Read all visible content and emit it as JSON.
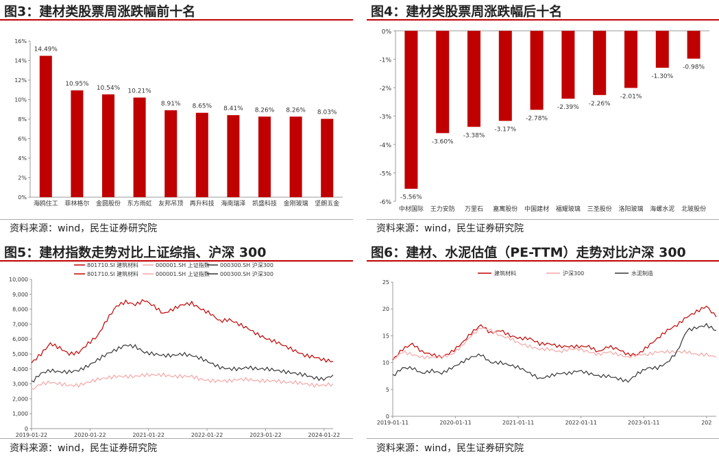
{
  "colors": {
    "accent": "#c00000",
    "pink": "#f4a6a6",
    "dark": "#333333"
  },
  "fig3": {
    "title": "图3：建材类股票周涨跌幅前十名",
    "source": "资料来源：wind，民生证券研究院"
  },
  "fig4": {
    "title": "图4：建材类股票周涨跌幅后十名",
    "source": "资料来源：wind，民生证券研究院"
  },
  "fig5": {
    "title": "图5：建材指数走势对比上证综指、沪深 300",
    "source": "资料来源：wind，民生证券研究院",
    "legend_top": [
      "801710.SI 建筑材料",
      "000001.SH 上证指数",
      "000300.SH 沪深300"
    ],
    "legend_bottom": [
      "801710.SI 建筑材料",
      "000001.SH 上证指数",
      "000300.SH 沪深300"
    ]
  },
  "fig6": {
    "title": "图6：建材、水泥估值（PE-TTM）走势对比沪深 300",
    "source": "资料来源：wind，民生证券研究院",
    "legend": [
      "建筑材料",
      "沪深300",
      "水泥制造"
    ]
  },
  "chart_data": [
    {
      "type": "bar",
      "categories": [
        "海鸥住工",
        "菲林格尔",
        "金圆股份",
        "东方雨虹",
        "友邦吊顶",
        "再升科技",
        "海南瑞泽",
        "凯盛科技",
        "金刚玻璃",
        "坚朗五金"
      ],
      "values": [
        14.49,
        10.95,
        10.54,
        10.21,
        8.91,
        8.65,
        8.41,
        8.26,
        8.26,
        8.03
      ],
      "labels": [
        "14.49%",
        "10.95%",
        "10.54%",
        "10.21%",
        "8.91%",
        "8.65%",
        "8.41%",
        "8.26%",
        "8.26%",
        "8.03%"
      ],
      "ylim": [
        0,
        16
      ],
      "yticks": [
        "0%",
        "2%",
        "4%",
        "6%",
        "8%",
        "10%",
        "12%",
        "14%",
        "16%"
      ]
    },
    {
      "type": "bar",
      "categories": [
        "中材国际",
        "王力安防",
        "万里石",
        "嘉寓股份",
        "中国建材",
        "福耀玻璃",
        "三圣股份",
        "洛阳玻璃",
        "海螺水泥",
        "北玻股份"
      ],
      "values": [
        -5.56,
        -3.6,
        -3.38,
        -3.17,
        -2.78,
        -2.39,
        -2.26,
        -2.01,
        -1.3,
        -0.98
      ],
      "labels": [
        "-5.56%",
        "-3.60%",
        "-3.38%",
        "-3.17%",
        "-2.78%",
        "-2.39%",
        "-2.26%",
        "-2.01%",
        "-1.30%",
        "-0.98%"
      ],
      "ylim": [
        -6,
        0
      ],
      "yticks": [
        "0%",
        "-1%",
        "-2%",
        "-3%",
        "-4%",
        "-5%",
        "-6%"
      ]
    },
    {
      "type": "line",
      "x_ticks": [
        "2019-01-22",
        "2020-01-22",
        "2021-01-22",
        "2022-01-22",
        "2023-01-22",
        "2024-01-22"
      ],
      "yticks": [
        "0",
        "1,000",
        "2,000",
        "3,000",
        "4,000",
        "5,000",
        "6,000",
        "7,000",
        "8,000",
        "9,000",
        "10,000"
      ],
      "ylim": [
        0,
        10000
      ],
      "series": [
        {
          "name": "801710.SI 建筑材料",
          "color": "#c00000",
          "values": [
            4400,
            5000,
            5700,
            5400,
            5000,
            5100,
            5700,
            6200,
            7300,
            8200,
            8500,
            8300,
            8600,
            8200,
            7700,
            8000,
            8300,
            8400,
            8000,
            7700,
            7200,
            7300,
            7000,
            6700,
            6300,
            6000,
            5800,
            5500,
            5200,
            4900,
            4800,
            4600,
            4500
          ]
        },
        {
          "name": "000001.SH 上证指数",
          "color": "#f4a6a6",
          "values": [
            2600,
            3000,
            3100,
            3000,
            2900,
            2900,
            3100,
            3300,
            3400,
            3500,
            3500,
            3500,
            3600,
            3600,
            3600,
            3500,
            3500,
            3500,
            3300,
            3200,
            3200,
            3200,
            3300,
            3300,
            3200,
            3200,
            3200,
            3100,
            3100,
            3000,
            2900,
            2900,
            3000
          ]
        },
        {
          "name": "000300.SH 沪深300",
          "color": "#333333",
          "values": [
            3100,
            3700,
            3900,
            3800,
            3800,
            3900,
            4200,
            4600,
            5000,
            5300,
            5600,
            5500,
            5100,
            5000,
            4900,
            4900,
            5000,
            4900,
            4700,
            4400,
            4100,
            4000,
            4000,
            4100,
            4000,
            4000,
            3900,
            3800,
            3700,
            3600,
            3400,
            3300,
            3600
          ]
        }
      ]
    },
    {
      "type": "line",
      "x_ticks": [
        "2019-01-11",
        "2020-01-11",
        "2021-01-11",
        "2022-01-11",
        "2023-01-11",
        "202"
      ],
      "yticks": [
        "0",
        "5",
        "10",
        "15",
        "20",
        "25"
      ],
      "ylim": [
        0,
        25
      ],
      "series": [
        {
          "name": "建筑材料",
          "color": "#c00000",
          "values": [
            10.5,
            12.5,
            13.5,
            12,
            11.5,
            11,
            12,
            13.5,
            15.5,
            17,
            15.5,
            16,
            15,
            14.5,
            14.5,
            13.5,
            13.5,
            13,
            13,
            13,
            13,
            12,
            13,
            12.5,
            11.5,
            11.5,
            13,
            14.5,
            16,
            17,
            18.5,
            19.5,
            20.5,
            18.5
          ]
        },
        {
          "name": "沪深300",
          "color": "#f4a6a6",
          "values": [
            10.5,
            12,
            11.5,
            11,
            11,
            11,
            11.5,
            13,
            15,
            16.5,
            16,
            15,
            14.5,
            13.5,
            13,
            12.5,
            12.5,
            12,
            12.5,
            12.5,
            12,
            11.5,
            12,
            11.5,
            11,
            11.5,
            11.5,
            12,
            12,
            12,
            12,
            11.5,
            11.5,
            11
          ]
        },
        {
          "name": "水泥制造",
          "color": "#333333",
          "values": [
            7.5,
            9,
            9,
            8,
            8.5,
            8,
            9,
            10,
            11,
            11.5,
            10,
            10,
            9.5,
            9,
            8,
            7,
            7.5,
            8,
            8,
            8.5,
            8,
            7.5,
            7.5,
            7,
            6.5,
            8,
            9,
            9,
            10,
            12,
            16,
            16.5,
            17,
            16
          ]
        }
      ]
    }
  ]
}
